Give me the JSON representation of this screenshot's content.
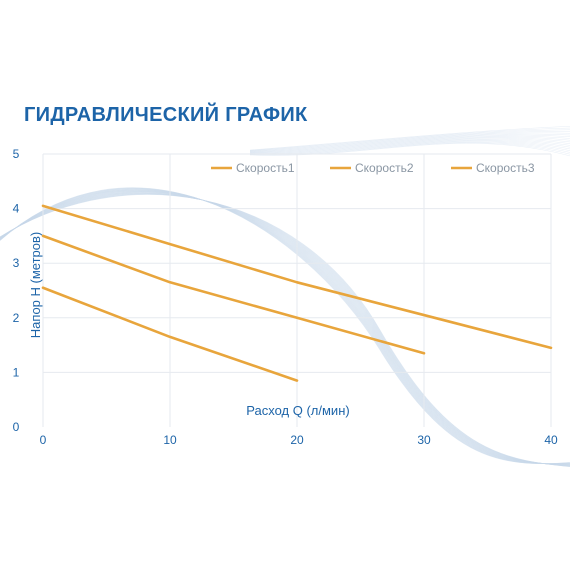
{
  "page": {
    "title": "ГИДРАВЛИЧЕСКИЙ ГРАФИК"
  },
  "colors": {
    "title": "#1d64a8",
    "axis_text": "#1d64a8",
    "line": "#e8a53c",
    "grid": "#e6eaef",
    "wave": "#c9d9ea"
  },
  "chart_data": {
    "type": "line",
    "title": "ГИДРАВЛИЧЕСКИЙ ГРАФИК",
    "xlabel": "Расход Q (л/мин)",
    "ylabel": "Напор H (метров)",
    "xlim": [
      0,
      40
    ],
    "ylim": [
      0,
      5
    ],
    "xticks": [
      0,
      10,
      20,
      30,
      40
    ],
    "yticks": [
      0,
      1,
      2,
      3,
      4,
      5
    ],
    "grid": true,
    "legend_position": "top-right",
    "series": [
      {
        "name": "Скорость1",
        "x": [
          0,
          10,
          20
        ],
        "y": [
          2.55,
          1.65,
          0.85
        ]
      },
      {
        "name": "Скорость2",
        "x": [
          0,
          10,
          20,
          30
        ],
        "y": [
          3.5,
          2.65,
          2.0,
          1.35
        ]
      },
      {
        "name": "Скорость3",
        "x": [
          0,
          10,
          20,
          30,
          40
        ],
        "y": [
          4.05,
          3.35,
          2.65,
          2.05,
          1.45
        ]
      }
    ]
  }
}
